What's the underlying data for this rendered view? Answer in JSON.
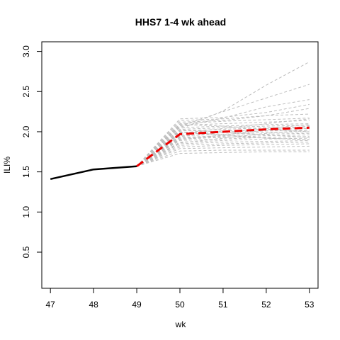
{
  "chart_data": {
    "type": "line",
    "title": "HHS7 1-4 wk ahead",
    "xlabel": "wk",
    "ylabel": "ILI%",
    "xlim": [
      46.8,
      53.2
    ],
    "ylim": [
      0.05,
      3.12
    ],
    "x_ticks": [
      47,
      48,
      49,
      50,
      51,
      52,
      53
    ],
    "y_ticks": [
      0.5,
      1.0,
      1.5,
      2.0,
      2.5,
      3.0
    ],
    "y_tick_labels": [
      "0.5",
      "1.0",
      "1.5",
      "2.0",
      "2.5",
      "3.0"
    ],
    "grid": false,
    "legend": "none",
    "colors": {
      "observed": "#000000",
      "forecast_mean": "#ee0000",
      "trajectories": "#bebebe"
    },
    "observed": {
      "x": [
        47,
        48,
        49
      ],
      "y": [
        1.41,
        1.53,
        1.57
      ]
    },
    "forecast_mean": {
      "x": [
        49,
        50,
        51,
        52,
        53
      ],
      "y": [
        1.57,
        1.97,
        2.0,
        2.03,
        2.05
      ]
    },
    "trajectories": [
      {
        "y": [
          1.57,
          2.03,
          2.26,
          2.58,
          2.87
        ]
      },
      {
        "y": [
          1.57,
          2.07,
          2.25,
          2.42,
          2.59
        ]
      },
      {
        "y": [
          1.57,
          2.06,
          2.17,
          2.31,
          2.4
        ]
      },
      {
        "y": [
          1.57,
          2.16,
          2.18,
          2.24,
          2.34
        ]
      },
      {
        "y": [
          1.57,
          2.12,
          2.14,
          2.2,
          2.29
        ]
      },
      {
        "y": [
          1.57,
          2.14,
          2.16,
          2.2,
          2.22
        ]
      },
      {
        "y": [
          1.57,
          2.1,
          2.13,
          2.15,
          2.17
        ]
      },
      {
        "y": [
          1.57,
          2.08,
          2.1,
          2.12,
          2.14
        ]
      },
      {
        "y": [
          1.57,
          2.05,
          2.07,
          2.09,
          2.1
        ]
      },
      {
        "y": [
          1.57,
          2.03,
          2.05,
          2.07,
          2.08
        ]
      },
      {
        "y": [
          1.57,
          2.01,
          2.03,
          2.05,
          2.06
        ]
      },
      {
        "y": [
          1.57,
          1.99,
          2.01,
          2.03,
          2.04
        ]
      },
      {
        "y": [
          1.57,
          1.97,
          1.99,
          2.01,
          2.02
        ]
      },
      {
        "y": [
          1.57,
          1.95,
          1.97,
          1.99,
          2.0
        ]
      },
      {
        "y": [
          1.57,
          1.93,
          1.95,
          1.97,
          1.98
        ]
      },
      {
        "y": [
          1.57,
          1.91,
          1.93,
          1.95,
          1.96
        ]
      },
      {
        "y": [
          1.57,
          1.89,
          1.91,
          1.93,
          1.94
        ]
      },
      {
        "y": [
          1.57,
          1.87,
          1.89,
          1.91,
          1.92
        ]
      },
      {
        "y": [
          1.57,
          1.85,
          1.87,
          1.88,
          1.89
        ]
      },
      {
        "y": [
          1.57,
          1.83,
          1.85,
          1.86,
          1.87
        ]
      },
      {
        "y": [
          1.57,
          1.81,
          1.83,
          1.84,
          1.85
        ]
      },
      {
        "y": [
          1.57,
          1.79,
          1.8,
          1.81,
          1.82
        ]
      },
      {
        "y": [
          1.57,
          1.76,
          1.77,
          1.77,
          1.77
        ]
      },
      {
        "y": [
          1.57,
          1.73,
          1.74,
          1.75,
          1.75
        ]
      },
      {
        "y": [
          1.57,
          2.0,
          1.96,
          1.92,
          1.9
        ]
      },
      {
        "y": [
          1.57,
          2.02,
          2.0,
          1.96,
          1.93
        ]
      },
      {
        "y": [
          1.57,
          1.94,
          1.99,
          2.04,
          2.09
        ]
      },
      {
        "y": [
          1.57,
          1.9,
          1.96,
          2.02,
          2.07
        ]
      },
      {
        "y": [
          1.57,
          1.86,
          1.92,
          1.98,
          2.02
        ]
      },
      {
        "y": [
          1.57,
          2.09,
          2.07,
          2.03,
          2.0
        ]
      },
      {
        "y": [
          1.57,
          1.98,
          2.04,
          2.1,
          2.16
        ]
      },
      {
        "y": [
          1.57,
          1.92,
          1.94,
          1.92,
          1.9
        ]
      }
    ]
  }
}
